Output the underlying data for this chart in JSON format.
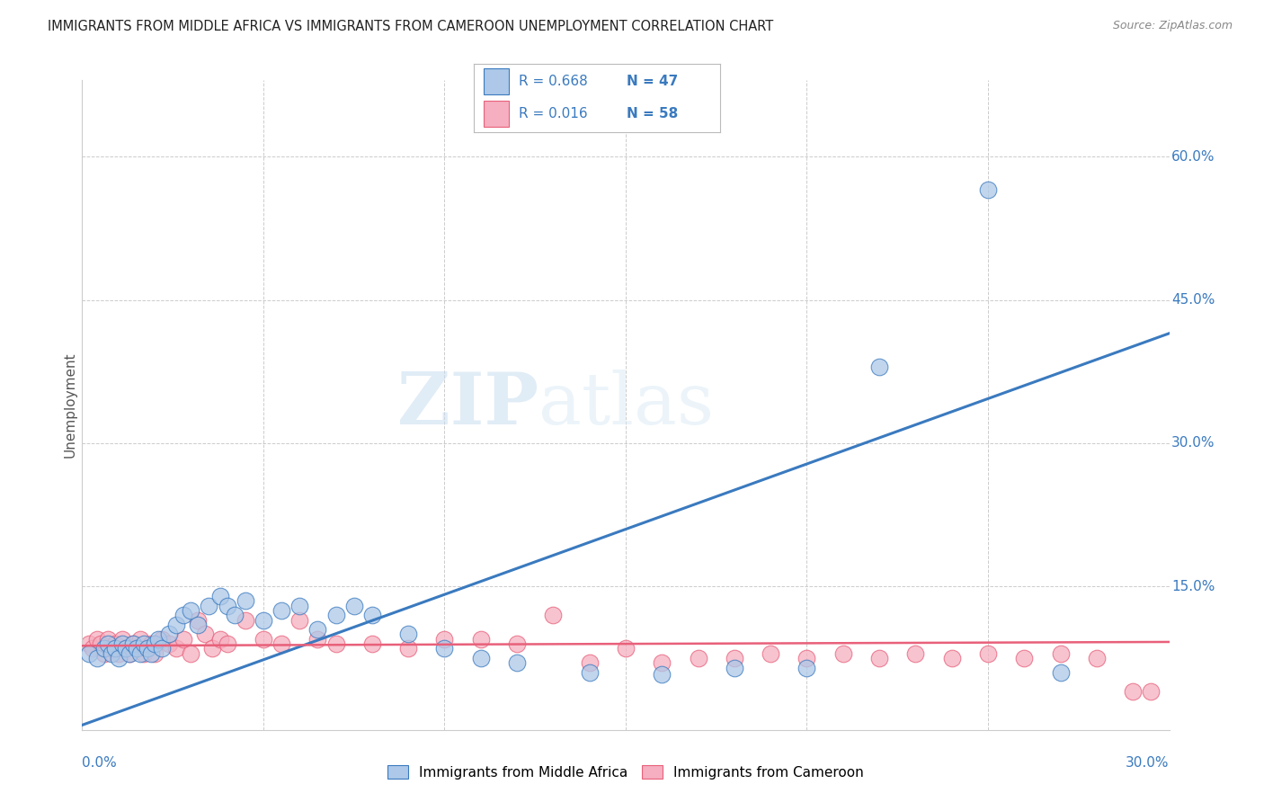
{
  "title": "IMMIGRANTS FROM MIDDLE AFRICA VS IMMIGRANTS FROM CAMEROON UNEMPLOYMENT CORRELATION CHART",
  "source": "Source: ZipAtlas.com",
  "ylabel_label": "Unemployment",
  "xlim": [
    0.0,
    0.3
  ],
  "ylim": [
    0.0,
    0.68
  ],
  "x_ticks": [
    0.0,
    0.05,
    0.1,
    0.15,
    0.2,
    0.25,
    0.3
  ],
  "y_ticks_right": [
    0.0,
    0.15,
    0.3,
    0.45,
    0.6
  ],
  "y_tick_labels_right": [
    "",
    "15.0%",
    "30.0%",
    "45.0%",
    "60.0%"
  ],
  "watermark_zip": "ZIP",
  "watermark_atlas": "atlas",
  "legend_r1": "R = 0.668",
  "legend_n1": "N = 47",
  "legend_r2": "R = 0.016",
  "legend_n2": "N = 58",
  "color_blue": "#adc8e8",
  "color_pink": "#f5afc0",
  "line_blue": "#3a7abf",
  "line_pink": "#e8607a",
  "scatter_blue_x": [
    0.002,
    0.004,
    0.006,
    0.007,
    0.008,
    0.009,
    0.01,
    0.011,
    0.012,
    0.013,
    0.014,
    0.015,
    0.016,
    0.017,
    0.018,
    0.019,
    0.02,
    0.021,
    0.022,
    0.024,
    0.026,
    0.028,
    0.03,
    0.032,
    0.035,
    0.038,
    0.04,
    0.042,
    0.045,
    0.05,
    0.055,
    0.06,
    0.065,
    0.07,
    0.075,
    0.08,
    0.09,
    0.1,
    0.11,
    0.12,
    0.14,
    0.16,
    0.18,
    0.2,
    0.22,
    0.25,
    0.27
  ],
  "scatter_blue_y": [
    0.08,
    0.075,
    0.085,
    0.09,
    0.08,
    0.085,
    0.075,
    0.09,
    0.085,
    0.08,
    0.09,
    0.085,
    0.08,
    0.09,
    0.085,
    0.08,
    0.09,
    0.095,
    0.085,
    0.1,
    0.11,
    0.12,
    0.125,
    0.11,
    0.13,
    0.14,
    0.13,
    0.12,
    0.135,
    0.115,
    0.125,
    0.13,
    0.105,
    0.12,
    0.13,
    0.12,
    0.1,
    0.085,
    0.075,
    0.07,
    0.06,
    0.058,
    0.065,
    0.065,
    0.38,
    0.565,
    0.06
  ],
  "scatter_pink_x": [
    0.002,
    0.003,
    0.004,
    0.005,
    0.006,
    0.007,
    0.008,
    0.009,
    0.01,
    0.011,
    0.012,
    0.013,
    0.014,
    0.015,
    0.016,
    0.017,
    0.018,
    0.019,
    0.02,
    0.022,
    0.024,
    0.026,
    0.028,
    0.03,
    0.032,
    0.034,
    0.036,
    0.038,
    0.04,
    0.045,
    0.05,
    0.055,
    0.06,
    0.065,
    0.07,
    0.08,
    0.09,
    0.1,
    0.11,
    0.12,
    0.13,
    0.14,
    0.15,
    0.16,
    0.17,
    0.18,
    0.19,
    0.2,
    0.21,
    0.22,
    0.23,
    0.24,
    0.25,
    0.26,
    0.27,
    0.28,
    0.29,
    0.295
  ],
  "scatter_pink_y": [
    0.09,
    0.085,
    0.095,
    0.09,
    0.08,
    0.095,
    0.085,
    0.09,
    0.08,
    0.095,
    0.085,
    0.08,
    0.09,
    0.085,
    0.095,
    0.08,
    0.085,
    0.09,
    0.08,
    0.095,
    0.09,
    0.085,
    0.095,
    0.08,
    0.115,
    0.1,
    0.085,
    0.095,
    0.09,
    0.115,
    0.095,
    0.09,
    0.115,
    0.095,
    0.09,
    0.09,
    0.085,
    0.095,
    0.095,
    0.09,
    0.12,
    0.07,
    0.085,
    0.07,
    0.075,
    0.075,
    0.08,
    0.075,
    0.08,
    0.075,
    0.08,
    0.075,
    0.08,
    0.075,
    0.08,
    0.075,
    0.04,
    0.04
  ],
  "blue_line_x": [
    0.0,
    0.3
  ],
  "blue_line_y": [
    0.005,
    0.415
  ],
  "pink_line_x": [
    0.0,
    0.3
  ],
  "pink_line_y": [
    0.088,
    0.092
  ],
  "grid_color": "#cccccc",
  "title_color": "#222222",
  "axis_label_color": "#3a7abf",
  "right_tick_color": "#3a7abf",
  "background_color": "#ffffff"
}
